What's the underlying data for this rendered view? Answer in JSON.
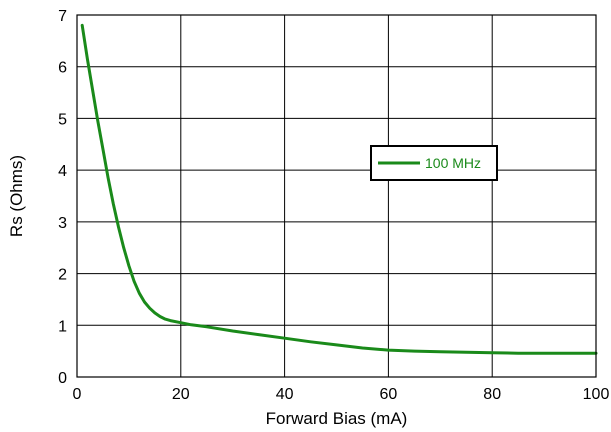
{
  "chart_data": {
    "type": "line",
    "title": "",
    "xlabel": "Forward Bias (mA)",
    "ylabel": "Rs (Ohms)",
    "xlim": [
      0,
      100
    ],
    "ylim": [
      0,
      7
    ],
    "x_ticks": [
      0,
      20,
      40,
      60,
      80,
      100
    ],
    "y_ticks": [
      0,
      1,
      2,
      3,
      4,
      5,
      6,
      7
    ],
    "grid": true,
    "legend": "center-right",
    "series": [
      {
        "name": "100 MHz",
        "color": "#1a8a1a",
        "x": [
          1,
          2,
          3,
          4,
          5,
          6,
          7,
          8,
          9,
          10,
          11,
          12,
          13,
          14,
          15,
          16,
          17,
          18,
          20,
          22,
          25,
          30,
          35,
          40,
          45,
          50,
          55,
          60,
          65,
          70,
          75,
          80,
          85,
          90,
          95,
          100
        ],
        "y": [
          6.8,
          6.15,
          5.55,
          4.95,
          4.4,
          3.85,
          3.35,
          2.9,
          2.5,
          2.15,
          1.85,
          1.62,
          1.45,
          1.33,
          1.24,
          1.17,
          1.12,
          1.09,
          1.05,
          1.01,
          0.97,
          0.89,
          0.82,
          0.75,
          0.68,
          0.62,
          0.56,
          0.52,
          0.5,
          0.49,
          0.48,
          0.47,
          0.46,
          0.46,
          0.46,
          0.46
        ]
      }
    ]
  }
}
